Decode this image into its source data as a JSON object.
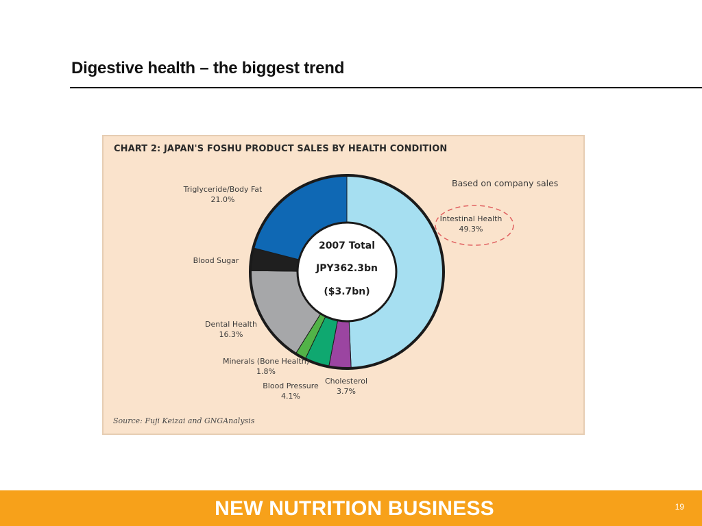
{
  "slide": {
    "title": "Digestive health – the biggest trend",
    "page_number": "19"
  },
  "footer": {
    "brand": "NEW NUTRITION BUSINESS"
  },
  "chart_data": {
    "type": "pie",
    "title": "CHART 2: JAPAN'S FOSHU PRODUCT SALES BY HEALTH CONDITION",
    "note": "Based on company sales",
    "center_text": [
      "2007 Total",
      "JPY362.3bn",
      "($3.7bn)"
    ],
    "source": "Source: Fuji Keizai and GNGAnalysis",
    "slices": [
      {
        "name": "Intestinal Health",
        "label": "49.3%",
        "value": 49.3,
        "color": "#a6dff1"
      },
      {
        "name": "Cholesterol",
        "label": "3.7%",
        "value": 3.7,
        "color": "#9b45a1"
      },
      {
        "name": "Blood Pressure",
        "label": "4.1%",
        "value": 4.1,
        "color": "#0fa870"
      },
      {
        "name": "Minerals (Bone Health)",
        "label": "1.8%",
        "value": 1.8,
        "color": "#52b348"
      },
      {
        "name": "Dental Health",
        "label": "16.3%",
        "value": 16.3,
        "color": "#a6a7a9"
      },
      {
        "name": "Blood Sugar",
        "label": "",
        "value": 3.8,
        "color": "#1f1f1f"
      },
      {
        "name": "Triglyceride/Body Fat",
        "label": "21.0%",
        "value": 21.0,
        "color": "#0f68b4"
      }
    ],
    "highlight": "Intestinal Health"
  }
}
